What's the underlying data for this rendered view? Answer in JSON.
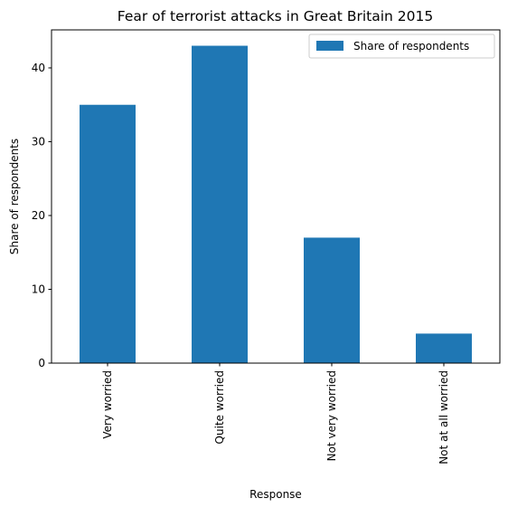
{
  "chart_data": {
    "type": "bar",
    "title": "Fear of terrorist attacks in Great Britain 2015",
    "xlabel": "Response",
    "ylabel": "Share of respondents",
    "categories": [
      "Very worried",
      "Quite worried",
      "Not very worried",
      "Not at all worried"
    ],
    "series": [
      {
        "name": "Share of respondents",
        "values": [
          35,
          43,
          17,
          4
        ],
        "color": "#1f77b4"
      }
    ],
    "ylim": [
      0,
      45.15
    ],
    "yticks": [
      0,
      10,
      20,
      30,
      40
    ],
    "grid": false,
    "legend_position": "top-right"
  }
}
